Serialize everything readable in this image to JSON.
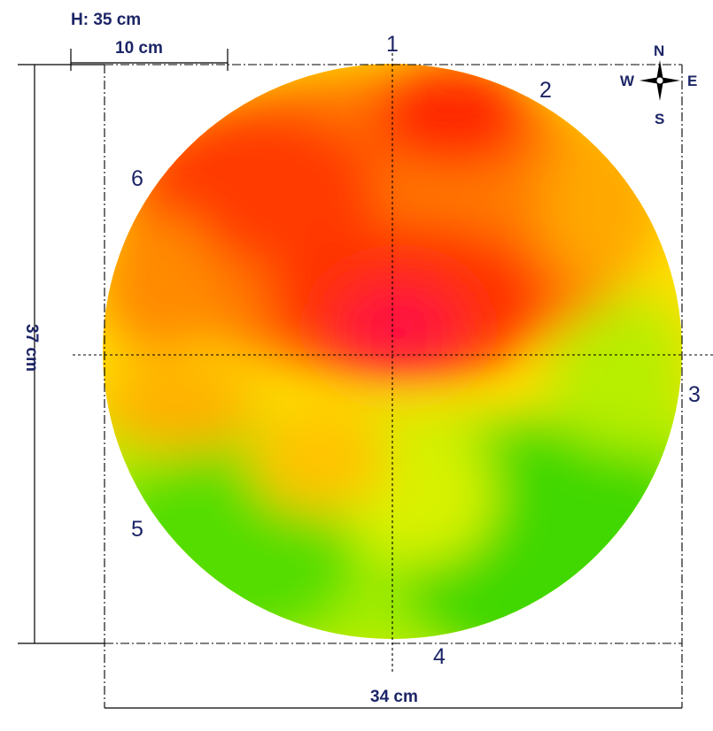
{
  "dimensions": {
    "height_label": "H: 35 cm",
    "scale_bar_label": "10 cm",
    "vertical_label": "37 cm",
    "horizontal_label": "34 cm"
  },
  "points": [
    {
      "label": "1",
      "id": "point-1-label"
    },
    {
      "label": "2",
      "id": "point-2-label"
    },
    {
      "label": "3",
      "id": "point-3-label"
    },
    {
      "label": "4",
      "id": "point-4-label"
    },
    {
      "label": "5",
      "id": "point-5-label"
    },
    {
      "label": "6",
      "id": "point-6-label"
    }
  ],
  "compass": {
    "n": "N",
    "s": "S",
    "e": "E",
    "w": "W"
  },
  "colors": {
    "label_text": "#1c2566",
    "hot": "#ff0030",
    "warm": "#ff5a00",
    "mid": "#ffd200",
    "cool": "#c8f000",
    "cold": "#3cd700"
  }
}
